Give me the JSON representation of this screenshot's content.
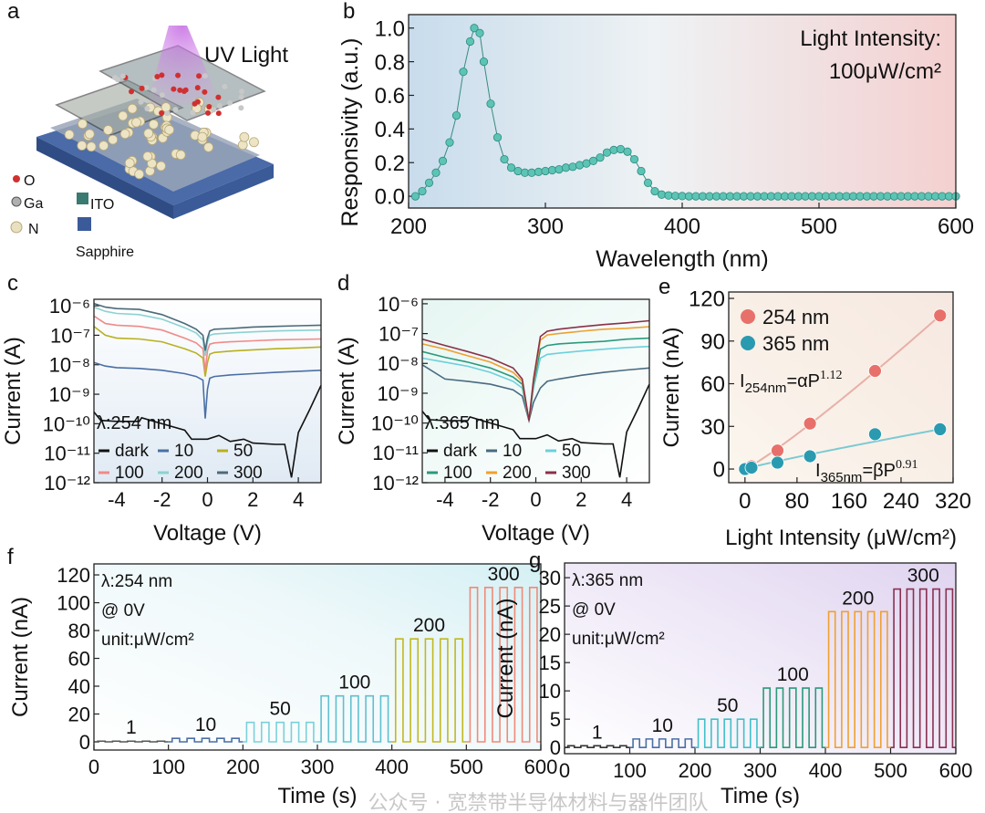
{
  "panel_letters": [
    "a",
    "b",
    "c",
    "d",
    "e",
    "f",
    "g"
  ],
  "panel_a": {
    "uv_label": "UV Light",
    "legend": [
      {
        "label": "O",
        "color": "#d03030"
      },
      {
        "label": "Ga",
        "color": "#b0b0b0"
      },
      {
        "label": "ITO",
        "color": "#3a7a70"
      },
      {
        "label": "N",
        "color": "#e8e0c0"
      },
      {
        "label": "Sapphire",
        "color": "#3a5a9a"
      }
    ]
  },
  "watermark": "公众号 · 宽禁带半导体材料与器件团队",
  "chart_data": [
    {
      "panel": "b",
      "type": "scatter",
      "xlabel": "Wavelength (nm)",
      "ylabel": "Responsivity (a.u.)",
      "xlim": [
        200,
        600
      ],
      "ylim": [
        -0.07,
        1.08
      ],
      "xticks": [
        200,
        300,
        400,
        500,
        600
      ],
      "xtick_labels": [
        "200",
        "300",
        "400",
        "500",
        "600"
      ],
      "yticks": [
        0,
        0.2,
        0.4,
        0.6,
        0.8,
        1.0
      ],
      "ytick_labels": [
        "0.0",
        "0.2",
        "0.4",
        "0.6",
        "0.8",
        "1.0"
      ],
      "annotation": [
        "Light Intensity:",
        "100μW/cm²"
      ],
      "color": "#5cc4b4",
      "x": [
        205,
        210,
        215,
        220,
        225,
        230,
        235,
        240,
        245,
        248,
        252,
        255,
        260,
        265,
        270,
        275,
        280,
        285,
        290,
        295,
        300,
        305,
        310,
        315,
        320,
        325,
        330,
        335,
        340,
        345,
        350,
        355,
        360,
        365,
        370,
        375,
        380,
        385,
        390,
        395,
        400,
        405,
        410,
        415,
        420,
        425,
        430,
        435,
        440,
        445,
        450,
        455,
        460,
        465,
        470,
        475,
        480,
        485,
        490,
        495,
        500,
        505,
        510,
        515,
        520,
        525,
        530,
        535,
        540,
        545,
        550,
        555,
        560,
        565,
        570,
        575,
        580,
        585,
        590,
        595,
        600
      ],
      "y": [
        0.0,
        0.03,
        0.08,
        0.14,
        0.21,
        0.32,
        0.48,
        0.74,
        0.92,
        1.0,
        0.97,
        0.8,
        0.55,
        0.35,
        0.22,
        0.17,
        0.15,
        0.14,
        0.14,
        0.145,
        0.15,
        0.155,
        0.16,
        0.17,
        0.175,
        0.185,
        0.195,
        0.21,
        0.23,
        0.26,
        0.275,
        0.28,
        0.265,
        0.22,
        0.15,
        0.08,
        0.03,
        0.01,
        0.005,
        0.002,
        0.001,
        0,
        0,
        0,
        0,
        0,
        0,
        0,
        0,
        0,
        0,
        0,
        0,
        0,
        0,
        0,
        0,
        0,
        0,
        0,
        0,
        0,
        0,
        0,
        0,
        0,
        0,
        0,
        0,
        0,
        0,
        0,
        0,
        0,
        0,
        0,
        0,
        0,
        0,
        0,
        0
      ]
    },
    {
      "panel": "c",
      "type": "line",
      "yscale": "log",
      "xlabel": "Voltage (V)",
      "ylabel": "Current (A)",
      "annotation": "λ:254 nm",
      "xlim": [
        -5,
        5
      ],
      "ylim_log10": [
        -12,
        -5.78
      ],
      "xticks": [
        -4,
        -2,
        0,
        2,
        4
      ],
      "xtick_labels": [
        "-4",
        "-2",
        "0",
        "2",
        "4"
      ],
      "yticks_log10": [
        -6,
        -7,
        -8,
        -9,
        -10,
        -11,
        -12
      ],
      "ytick_labels": [
        "10⁻⁶",
        "10⁻⁷",
        "10⁻⁸",
        "10⁻⁹",
        "10⁻¹⁰",
        "10⁻¹¹",
        "10⁻¹²"
      ],
      "series": [
        {
          "name": "dark",
          "color": "#111111",
          "v": [
            -5,
            -4.7,
            -4,
            -3,
            -2.9,
            -2,
            -1,
            -0.7,
            0,
            0.5,
            1,
            1.6,
            2,
            3,
            3.4,
            3.7,
            4,
            4.5,
            5
          ],
          "i": [
            2.5e-10,
            1.3e-10,
            1.2e-10,
            1.2e-10,
            1.6e-10,
            1e-10,
            6e-11,
            3e-11,
            3e-11,
            4e-11,
            2.5e-11,
            3e-11,
            2.2e-11,
            2e-11,
            2e-11,
            1.5e-12,
            5e-11,
            3e-10,
            2e-09
          ]
        },
        {
          "name": "10",
          "color": "#4a6fa5",
          "v": [
            -5,
            -4.5,
            -4,
            -3,
            -2,
            -1,
            -0.5,
            -0.2,
            -0.1,
            0,
            0.1,
            0.3,
            1,
            2,
            3,
            4,
            5
          ],
          "i": [
            1.2e-08,
            9e-09,
            8e-09,
            7.5e-09,
            6.5e-09,
            5e-09,
            4e-09,
            3e-09,
            1.5e-10,
            1.5e-09,
            3.5e-09,
            4e-09,
            4.5e-09,
            5e-09,
            5.5e-09,
            6e-09,
            6.5e-09
          ]
        },
        {
          "name": "50",
          "color": "#b8b020",
          "v": [
            -5,
            -4.5,
            -4,
            -3,
            -2,
            -1,
            -0.5,
            -0.2,
            -0.1,
            0,
            0.1,
            0.3,
            1,
            2,
            3,
            4,
            5
          ],
          "i": [
            2e-07,
            1e-07,
            8e-08,
            7.5e-08,
            6e-08,
            3.5e-08,
            2.5e-08,
            1.7e-08,
            4e-09,
            1.2e-08,
            2.3e-08,
            2.6e-08,
            2.9e-08,
            3.2e-08,
            3.5e-08,
            3.7e-08,
            4e-08
          ]
        },
        {
          "name": "100",
          "color": "#f08a8a",
          "v": [
            -5,
            -4.5,
            -4,
            -3,
            -2,
            -1,
            -0.5,
            -0.2,
            -0.1,
            0,
            0.1,
            0.3,
            1,
            2,
            3,
            4,
            5
          ],
          "i": [
            4.5e-07,
            2.5e-07,
            2.2e-07,
            2e-07,
            1.5e-07,
            8e-08,
            5.5e-08,
            3.5e-08,
            6e-09,
            3e-08,
            5e-08,
            5.5e-08,
            6e-08,
            6.5e-08,
            7e-08,
            7.2e-08,
            7.5e-08
          ]
        },
        {
          "name": "200",
          "color": "#8cd2d2",
          "v": [
            -5,
            -4.5,
            -4,
            -3,
            -2,
            -1,
            -0.5,
            -0.2,
            -0.1,
            0,
            0.1,
            0.3,
            1,
            2,
            3,
            4,
            5
          ],
          "i": [
            9e-07,
            6.5e-07,
            5.5e-07,
            5e-07,
            3.5e-07,
            1.8e-07,
            1.2e-07,
            7e-08,
            2e-08,
            6e-08,
            1e-07,
            1.1e-07,
            1.2e-07,
            1.3e-07,
            1.4e-07,
            1.45e-07,
            1.5e-07
          ]
        },
        {
          "name": "300",
          "color": "#4c6a7a",
          "v": [
            -5,
            -4.5,
            -4,
            -3,
            -2,
            -1,
            -0.5,
            -0.2,
            -0.1,
            0,
            0.1,
            0.3,
            1,
            2,
            3,
            4,
            5
          ],
          "i": [
            1.2e-06,
            9e-07,
            8e-07,
            7.5e-07,
            5e-07,
            2.5e-07,
            1.6e-07,
            1e-07,
            3e-08,
            8e-08,
            1.4e-07,
            1.6e-07,
            1.7e-07,
            1.9e-07,
            2e-07,
            2.1e-07,
            2.2e-07
          ]
        }
      ]
    },
    {
      "panel": "d",
      "type": "line",
      "yscale": "log",
      "xlabel": "Voltage (V)",
      "ylabel": "Current (A)",
      "annotation": "λ:365 nm",
      "xlim": [
        -5,
        5
      ],
      "ylim_log10": [
        -12,
        -5.85
      ],
      "xticks": [
        -4,
        -2,
        0,
        2,
        4
      ],
      "xtick_labels": [
        "-4",
        "-2",
        "0",
        "2",
        "4"
      ],
      "yticks_log10": [
        -6,
        -7,
        -8,
        -9,
        -10,
        -11,
        -12
      ],
      "ytick_labels": [
        "10⁻⁶",
        "10⁻⁷",
        "10⁻⁸",
        "10⁻⁹",
        "10⁻¹⁰",
        "10⁻¹¹",
        "10⁻¹²"
      ],
      "series": [
        {
          "name": "dark",
          "color": "#111111",
          "v": [
            -5,
            -4.7,
            -4,
            -3,
            -2.9,
            -2,
            -1,
            -0.7,
            0,
            0.5,
            1,
            1.6,
            2,
            3,
            3.4,
            3.7,
            4,
            4.5,
            5
          ],
          "i": [
            2.5e-10,
            1.3e-10,
            1.2e-10,
            1.2e-10,
            1.6e-10,
            1e-10,
            6e-11,
            3e-11,
            3e-11,
            4e-11,
            2.5e-11,
            3e-11,
            2.2e-11,
            2e-11,
            2e-11,
            1.5e-12,
            5e-11,
            3e-10,
            2e-09
          ]
        },
        {
          "name": "10",
          "color": "#4a6a80",
          "v": [
            -5,
            -4,
            -3,
            -2,
            -1,
            -0.6,
            -0.3,
            -0.1,
            0.2,
            0.5,
            1,
            2,
            3,
            4,
            5
          ],
          "i": [
            9e-09,
            3e-09,
            2.5e-09,
            2e-09,
            1.3e-09,
            8e-10,
            1.2e-10,
            5e-10,
            1.5e-09,
            2.5e-09,
            3e-09,
            4e-09,
            5e-09,
            6e-09,
            7e-09
          ]
        },
        {
          "name": "50",
          "color": "#6cd0dc",
          "v": [
            -5,
            -4,
            -3,
            -2,
            -1,
            -0.6,
            -0.3,
            -0.1,
            0.2,
            0.5,
            1,
            2,
            3,
            4,
            5
          ],
          "i": [
            1.5e-08,
            1.1e-08,
            8e-09,
            5e-09,
            2.5e-09,
            1.5e-09,
            1.2e-10,
            1.5e-09,
            1.5e-08,
            2e-08,
            2.2e-08,
            2.6e-08,
            3e-08,
            3.4e-08,
            3.7e-08
          ]
        },
        {
          "name": "100",
          "color": "#2a9a7c",
          "v": [
            -5,
            -4,
            -3,
            -2,
            -1,
            -0.6,
            -0.3,
            -0.1,
            0.2,
            0.5,
            1,
            2,
            3,
            4,
            5
          ],
          "i": [
            2.5e-08,
            1.6e-08,
            1.1e-08,
            7e-09,
            3.5e-09,
            2e-09,
            1.2e-10,
            2e-09,
            3e-08,
            4e-08,
            4.5e-08,
            5e-08,
            5.5e-08,
            6.5e-08,
            7e-08
          ]
        },
        {
          "name": "200",
          "color": "#f0a030",
          "v": [
            -5,
            -4,
            -3,
            -2,
            -1,
            -0.6,
            -0.3,
            -0.1,
            0.2,
            0.5,
            1,
            2,
            3,
            4,
            5
          ],
          "i": [
            4.5e-08,
            3e-08,
            1.8e-08,
            1.1e-08,
            5e-09,
            2.5e-09,
            1.2e-10,
            2.5e-09,
            6e-08,
            9e-08,
            1e-07,
            1.2e-07,
            1.4e-07,
            1.5e-07,
            1.7e-07
          ]
        },
        {
          "name": "300",
          "color": "#8a3048",
          "v": [
            -5,
            -4,
            -3,
            -2,
            -1,
            -0.6,
            -0.3,
            -0.1,
            0.2,
            0.5,
            1,
            2,
            3,
            4,
            5
          ],
          "i": [
            6.5e-08,
            4e-08,
            2.5e-08,
            1.5e-08,
            7e-09,
            3e-09,
            1.2e-10,
            3e-09,
            8e-08,
            1.2e-07,
            1.4e-07,
            1.7e-07,
            2e-07,
            2.3e-07,
            2.7e-07
          ]
        }
      ]
    },
    {
      "panel": "e",
      "type": "scatter",
      "xlabel": "Light Intensity (μW/cm²)",
      "ylabel": "Current (nA)",
      "xlim": [
        -25,
        320
      ],
      "ylim": [
        -9.6,
        124.5
      ],
      "xticks": [
        0,
        80,
        160,
        240,
        320
      ],
      "xtick_labels": [
        "0",
        "80",
        "160",
        "240",
        "320"
      ],
      "yticks": [
        0,
        30,
        60,
        90,
        120
      ],
      "ytick_labels": [
        "0",
        "30",
        "60",
        "90",
        "120"
      ],
      "series": [
        {
          "name": "254 nm",
          "color": "#e8706a",
          "fit_color": "#e8b0a8",
          "x": [
            0,
            10,
            50,
            100,
            200,
            300
          ],
          "y": [
            0.5,
            2,
            13,
            32,
            69,
            108
          ],
          "fit": {
            "base": "I",
            "sub": "254nm",
            "mid": "=αP",
            "sup": "1.12",
            "exponent": 1.12
          }
        },
        {
          "name": "365 nm",
          "color": "#2a9ab0",
          "fit_color": "#7ccad4",
          "x": [
            0,
            10,
            50,
            100,
            200,
            300
          ],
          "y": [
            0,
            1,
            4.5,
            9,
            24.5,
            28
          ],
          "fit": {
            "base": "I",
            "sub": "365nm",
            "mid": "=βP",
            "sup": "0.91",
            "exponent": 0.91
          }
        }
      ]
    },
    {
      "panel": "f",
      "type": "line",
      "xlabel": "Time (s)",
      "ylabel": "Current (nA)",
      "annotation": [
        "λ:254 nm",
        "@ 0V",
        "unit:μW/cm²"
      ],
      "xlim": [
        0,
        600
      ],
      "ylim": [
        -5.9,
        127.9
      ],
      "xticks": [
        0,
        100,
        200,
        300,
        400,
        500,
        600
      ],
      "xtick_labels": [
        "0",
        "100",
        "200",
        "300",
        "400",
        "500",
        "600"
      ],
      "yticks": [
        0,
        20,
        40,
        60,
        80,
        100,
        120
      ],
      "ytick_labels": [
        "0",
        "20",
        "40",
        "60",
        "80",
        "100",
        "120"
      ],
      "cycle_period_s": 20,
      "on_time_s": 10,
      "segments": [
        {
          "label": "1",
          "on_current": 0.5,
          "color": "#555555"
        },
        {
          "label": "10",
          "on_current": 2.5,
          "color": "#4a6fa5"
        },
        {
          "label": "50",
          "on_current": 14,
          "color": "#7cd0d8"
        },
        {
          "label": "100",
          "on_current": 33,
          "color": "#60c0d0"
        },
        {
          "label": "200",
          "on_current": 74,
          "color": "#c0b820"
        },
        {
          "label": "300",
          "on_current": 111,
          "color": "#f08a78"
        }
      ]
    },
    {
      "panel": "g",
      "type": "line",
      "xlabel": "Time (s)",
      "ylabel": "Current (nA)",
      "annotation": [
        "λ:365 nm",
        "@ 0V",
        "unit:μW/cm²"
      ],
      "xlim": [
        0,
        600
      ],
      "ylim": [
        -1.1,
        32.6
      ],
      "xticks": [
        0,
        100,
        200,
        300,
        400,
        500,
        600
      ],
      "xtick_labels": [
        "0",
        "100",
        "200",
        "300",
        "400",
        "500",
        "600"
      ],
      "yticks": [
        0,
        5,
        10,
        15,
        20,
        25,
        30
      ],
      "ytick_labels": [
        "0",
        "5",
        "10",
        "15",
        "20",
        "25",
        "30"
      ],
      "cycle_period_s": 20,
      "on_time_s": 10,
      "segments": [
        {
          "label": "1",
          "on_current": 0.3,
          "color": "#333333"
        },
        {
          "label": "10",
          "on_current": 1.5,
          "color": "#4a6fa5"
        },
        {
          "label": "50",
          "on_current": 5,
          "color": "#40c0c8"
        },
        {
          "label": "100",
          "on_current": 10.5,
          "color": "#2a9a78"
        },
        {
          "label": "200",
          "on_current": 24,
          "color": "#f0a030"
        },
        {
          "label": "300",
          "on_current": 28,
          "color": "#8a3050"
        }
      ]
    }
  ]
}
